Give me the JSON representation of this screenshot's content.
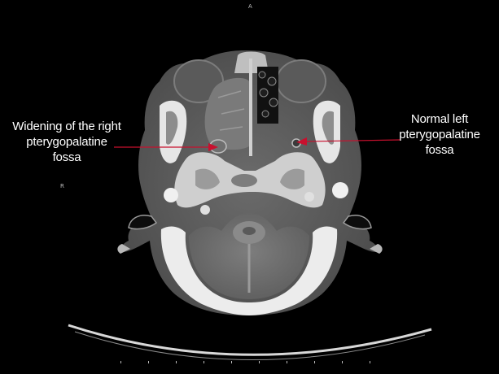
{
  "image": {
    "subject": "Axial CT scan of the head at the level of the skull base",
    "background_color": "#000000"
  },
  "orientation": {
    "top": "A",
    "left": "R"
  },
  "annotations": {
    "right": {
      "lines": [
        "Widening of the right",
        "pterygopalatine",
        "fossa"
      ],
      "arrow_color": "#c8102e"
    },
    "left": {
      "lines": [
        "Normal left",
        "pterygopalatine",
        "fossa"
      ],
      "arrow_color": "#c8102e"
    }
  }
}
